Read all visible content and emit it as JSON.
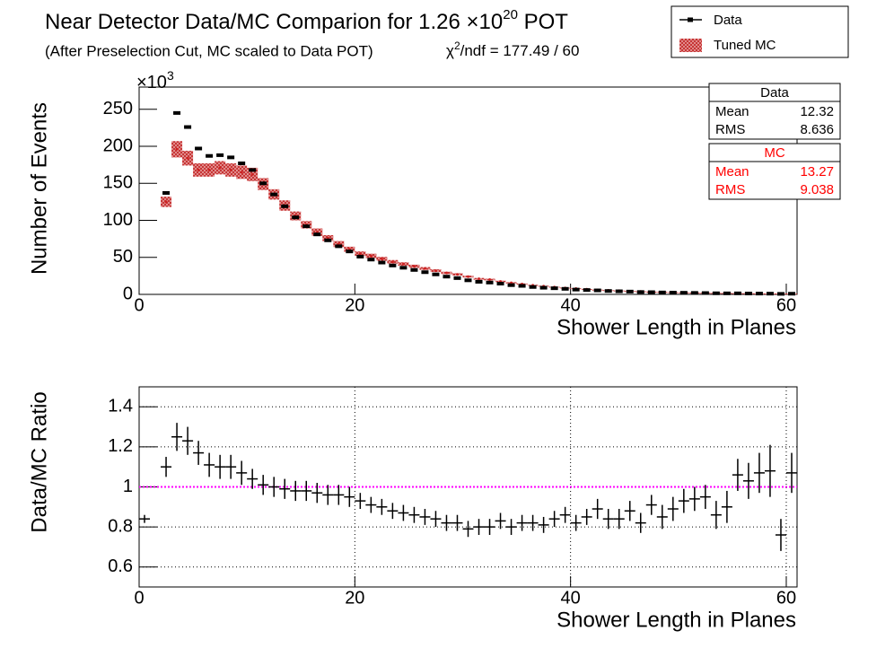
{
  "chart_data": [
    {
      "type": "data_mc",
      "title": "Near Detector Data/MC Comparion for 1.26 ×10",
      "title_sup": "20",
      "title_end": " POT",
      "subtitle": "(After Preselection Cut, MC scaled to Data POT)",
      "chi2_sym": "χ",
      "chi2_sup": "2",
      "chi2_text": "/ndf = 177.49 / 60",
      "x_label": "Shower Length in Planes",
      "y_label": "Number of Events",
      "y_exp": "×10",
      "y_exp_sup": "3",
      "x": [
        2.5,
        3.5,
        4.5,
        5.5,
        6.5,
        7.5,
        8.5,
        9.5,
        10.5,
        11.5,
        12.5,
        13.5,
        14.5,
        15.5,
        16.5,
        17.5,
        18.5,
        19.5,
        20.5,
        21.5,
        22.5,
        23.5,
        24.5,
        25.5,
        26.5,
        27.5,
        28.5,
        29.5,
        30.5,
        31.5,
        32.5,
        33.5,
        34.5,
        35.5,
        36.5,
        37.5,
        38.5,
        39.5,
        40.5,
        41.5,
        42.5,
        43.5,
        44.5,
        45.5,
        46.5,
        47.5,
        48.5,
        49.5,
        50.5,
        51.5,
        52.5,
        53.5,
        54.5,
        55.5,
        56.5,
        57.5,
        58.5,
        59.5,
        60.5
      ],
      "series": [
        {
          "name": "Data",
          "color": "#000000",
          "values": [
            137,
            245,
            226,
            197,
            187,
            188,
            185,
            177,
            168,
            150,
            135,
            119,
            104,
            92,
            81,
            73,
            65,
            58,
            51,
            47,
            43,
            39,
            36,
            33,
            30,
            27,
            24,
            22,
            19,
            17,
            16,
            14.5,
            12.5,
            11.5,
            10,
            9,
            8.3,
            7.5,
            6.5,
            5.9,
            5.4,
            4.6,
            4.2,
            3.8,
            3.2,
            3,
            2.6,
            2.4,
            2.2,
            2,
            1.8,
            1.5,
            1.4,
            1.4,
            1.2,
            1.1,
            1,
            0.7,
            0.9
          ]
        },
        {
          "name": "Tuned MC",
          "color": "#cc2222",
          "values": [
            125,
            196,
            184,
            168,
            168,
            171,
            168,
            165,
            162,
            149,
            135,
            120,
            106,
            94,
            84,
            76,
            68,
            61,
            55,
            52,
            48,
            44,
            41,
            38,
            35,
            32,
            29,
            27,
            24,
            21,
            20,
            17.5,
            15.6,
            14,
            12.2,
            11.1,
            9.9,
            8.7,
            7.9,
            6.9,
            6.1,
            5.5,
            5,
            4.3,
            3.9,
            3.3,
            3.1,
            2.7,
            2.4,
            2.1,
            1.9,
            1.7,
            1.6,
            1.3,
            1.2,
            1,
            0.9,
            0.9,
            0.8
          ],
          "errors": [
            7,
            11,
            10,
            9,
            9,
            9,
            9,
            9,
            9,
            8,
            7,
            7,
            6,
            5,
            5,
            4,
            4,
            3.4,
            3,
            2.9,
            2.6,
            2.4,
            2.3,
            2.1,
            1.9,
            1.8,
            1.6,
            1.5,
            1.3,
            1.2,
            1.1,
            1,
            0.9,
            0.8,
            0.7,
            0.6,
            0.5,
            0.5,
            0.4,
            0.4,
            0.3,
            0.3,
            0.3,
            0.3,
            0.3,
            0.3,
            0.3,
            0.3,
            0.3,
            0.3,
            0.3,
            0.3,
            0.3,
            0.3,
            0.3,
            0.3,
            0.3,
            0.3,
            0.3
          ]
        }
      ],
      "xlim": [
        0,
        61
      ],
      "xticks": [
        0,
        20,
        40,
        60
      ],
      "ylim": [
        0,
        280
      ],
      "yticks": [
        0,
        50,
        100,
        150,
        200,
        250
      ],
      "stats": [
        {
          "title": "Data",
          "color": "#000000",
          "labels": [
            "Mean",
            "RMS"
          ],
          "values": [
            12.32,
            8.636
          ]
        },
        {
          "title": "MC",
          "color": "#ff0000",
          "labels": [
            "Mean",
            "RMS"
          ],
          "values": [
            13.27,
            9.038
          ]
        }
      ]
    },
    {
      "type": "ratio",
      "x_label": "Shower Length in Planes",
      "y_label": "Data/MC Ratio",
      "x": [
        0.5,
        2.5,
        3.5,
        4.5,
        5.5,
        6.5,
        7.5,
        8.5,
        9.5,
        10.5,
        11.5,
        12.5,
        13.5,
        14.5,
        15.5,
        16.5,
        17.5,
        18.5,
        19.5,
        20.5,
        21.5,
        22.5,
        23.5,
        24.5,
        25.5,
        26.5,
        27.5,
        28.5,
        29.5,
        30.5,
        31.5,
        32.5,
        33.5,
        34.5,
        35.5,
        36.5,
        37.5,
        38.5,
        39.5,
        40.5,
        41.5,
        42.5,
        43.5,
        44.5,
        45.5,
        46.5,
        47.5,
        48.5,
        49.5,
        50.5,
        51.5,
        52.5,
        53.5,
        54.5,
        55.5,
        56.5,
        57.5,
        58.5,
        59.5,
        60.5
      ],
      "values": [
        0.84,
        1.1,
        1.25,
        1.23,
        1.17,
        1.11,
        1.1,
        1.1,
        1.07,
        1.04,
        1.01,
        1.0,
        0.99,
        0.98,
        0.98,
        0.97,
        0.96,
        0.96,
        0.95,
        0.93,
        0.91,
        0.9,
        0.88,
        0.87,
        0.86,
        0.85,
        0.84,
        0.82,
        0.82,
        0.79,
        0.8,
        0.8,
        0.83,
        0.8,
        0.82,
        0.82,
        0.81,
        0.84,
        0.86,
        0.82,
        0.85,
        0.89,
        0.84,
        0.84,
        0.88,
        0.82,
        0.91,
        0.85,
        0.89,
        0.93,
        0.94,
        0.95,
        0.86,
        0.9,
        1.06,
        1.03,
        1.07,
        1.08,
        0.76,
        1.07
      ],
      "errors": [
        0.02,
        0.05,
        0.07,
        0.07,
        0.06,
        0.06,
        0.06,
        0.06,
        0.06,
        0.05,
        0.05,
        0.05,
        0.05,
        0.05,
        0.05,
        0.05,
        0.05,
        0.05,
        0.05,
        0.04,
        0.04,
        0.04,
        0.04,
        0.04,
        0.04,
        0.04,
        0.04,
        0.04,
        0.04,
        0.04,
        0.04,
        0.04,
        0.04,
        0.04,
        0.04,
        0.04,
        0.04,
        0.04,
        0.04,
        0.04,
        0.04,
        0.05,
        0.05,
        0.05,
        0.05,
        0.05,
        0.05,
        0.06,
        0.06,
        0.06,
        0.06,
        0.06,
        0.07,
        0.08,
        0.08,
        0.09,
        0.1,
        0.13,
        0.08,
        0.1
      ],
      "color": "#000000",
      "reference": 1,
      "reference_color": "#ff00ff",
      "xlim": [
        0,
        61
      ],
      "xticks": [
        0,
        20,
        40,
        60
      ],
      "ylim": [
        0.5,
        1.5
      ],
      "yticks": [
        0.6,
        0.8,
        1,
        1.2,
        1.4
      ],
      "grid": true
    }
  ]
}
